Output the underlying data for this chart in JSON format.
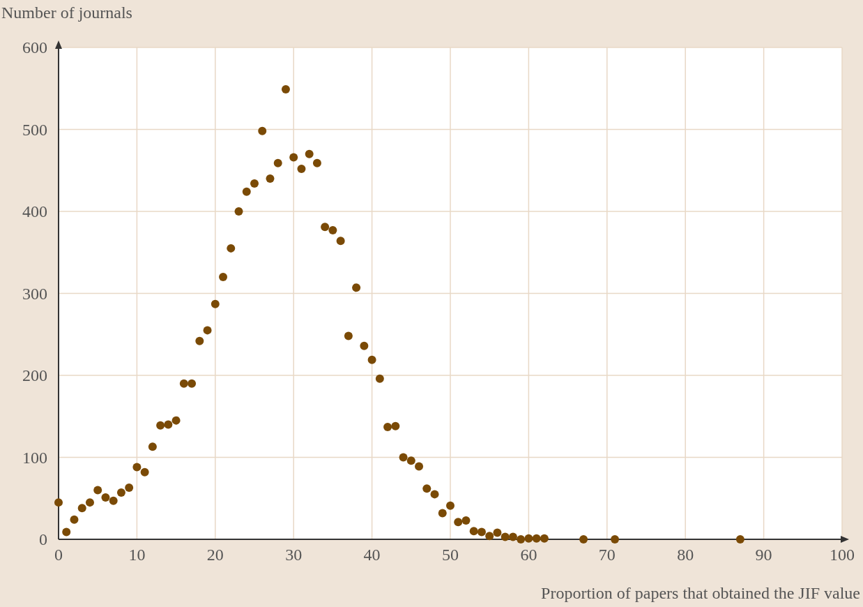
{
  "chart_data": {
    "type": "scatter",
    "ylabel": "Number of journals",
    "xlabel": "Proportion of papers that obtained the JIF value",
    "x": [
      0,
      1,
      2,
      3,
      4,
      5,
      6,
      7,
      8,
      9,
      10,
      11,
      12,
      13,
      14,
      15,
      16,
      17,
      18,
      19,
      20,
      21,
      22,
      23,
      24,
      25,
      26,
      27,
      28,
      29,
      30,
      31,
      32,
      33,
      34,
      35,
      36,
      37,
      38,
      39,
      40,
      41,
      42,
      43,
      44,
      45,
      46,
      47,
      48,
      49,
      50,
      51,
      52,
      53,
      54,
      55,
      56,
      57,
      58,
      59,
      60,
      61,
      62,
      67,
      71,
      87
    ],
    "values": [
      45,
      9,
      24,
      38,
      45,
      60,
      51,
      47,
      57,
      63,
      88,
      82,
      113,
      139,
      140,
      145,
      190,
      190,
      242,
      255,
      287,
      320,
      355,
      400,
      424,
      434,
      498,
      440,
      459,
      549,
      466,
      452,
      470,
      459,
      381,
      377,
      364,
      248,
      307,
      236,
      219,
      196,
      137,
      138,
      100,
      96,
      89,
      62,
      55,
      32,
      41,
      21,
      23,
      10,
      9,
      4,
      8,
      3,
      3,
      0,
      1,
      1,
      1,
      0,
      0,
      0
    ],
    "color": "#7a4a06",
    "marker": "circle",
    "xlim": [
      0,
      100
    ],
    "xticks": [
      0,
      10,
      20,
      30,
      40,
      50,
      60,
      70,
      80,
      90,
      100
    ],
    "ylim": [
      0,
      600
    ],
    "yticks": [
      0,
      100,
      200,
      300,
      400,
      500,
      600
    ],
    "grid": true
  }
}
